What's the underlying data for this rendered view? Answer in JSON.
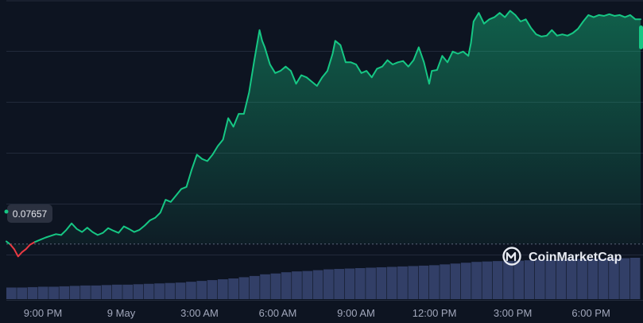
{
  "brand": {
    "name": "CoinMarketCap",
    "logo_icon": "coinmarketcap-logo-icon"
  },
  "colors": {
    "background": "#0d1421",
    "line": "#16c784",
    "line_below_reference": "#ea3943",
    "area_top": "#16c784",
    "grid": "#222a3b",
    "volume": "#3a4773",
    "reference_line": "#5d667b",
    "reference_label_bg": "#2b3140",
    "handle": "#16c784"
  },
  "chart_data": {
    "type": "line",
    "title": "",
    "xlabel": "",
    "ylabel": "",
    "x_unit": "hours",
    "xlim": [
      19.6,
      43.9
    ],
    "ylim": [
      0.07525,
      0.08225
    ],
    "reference_value": 0.07657,
    "reference_label": "0.07657",
    "grid": "horizontal",
    "xticks": [
      {
        "x": 21,
        "label": "9:00 PM"
      },
      {
        "x": 24,
        "label": "9 May"
      },
      {
        "x": 27,
        "label": "3:00 AM"
      },
      {
        "x": 30,
        "label": "6:00 AM"
      },
      {
        "x": 33,
        "label": "9:00 AM"
      },
      {
        "x": 36,
        "label": "12:00 PM"
      },
      {
        "x": 39,
        "label": "3:00 PM"
      },
      {
        "x": 42,
        "label": "6:00 PM"
      }
    ],
    "series": [
      {
        "role": "price",
        "points": [
          [
            19.6,
            0.07663
          ],
          [
            19.75,
            0.07656
          ],
          [
            19.9,
            0.07645
          ],
          [
            20.05,
            0.07628
          ],
          [
            20.2,
            0.07638
          ],
          [
            20.35,
            0.07645
          ],
          [
            20.5,
            0.07655
          ],
          [
            20.7,
            0.07662
          ],
          [
            20.9,
            0.07667
          ],
          [
            21.1,
            0.07672
          ],
          [
            21.3,
            0.07676
          ],
          [
            21.5,
            0.0768
          ],
          [
            21.7,
            0.07678
          ],
          [
            21.9,
            0.0769
          ],
          [
            22.1,
            0.07705
          ],
          [
            22.3,
            0.07692
          ],
          [
            22.5,
            0.07685
          ],
          [
            22.7,
            0.07695
          ],
          [
            22.9,
            0.07685
          ],
          [
            23.1,
            0.07678
          ],
          [
            23.3,
            0.07683
          ],
          [
            23.5,
            0.07694
          ],
          [
            23.7,
            0.07688
          ],
          [
            23.9,
            0.07683
          ],
          [
            24.1,
            0.07698
          ],
          [
            24.3,
            0.07692
          ],
          [
            24.5,
            0.07685
          ],
          [
            24.7,
            0.0769
          ],
          [
            24.9,
            0.077
          ],
          [
            25.1,
            0.07712
          ],
          [
            25.3,
            0.07718
          ],
          [
            25.5,
            0.0773
          ],
          [
            25.7,
            0.0776
          ],
          [
            25.9,
            0.07755
          ],
          [
            26.1,
            0.0777
          ],
          [
            26.3,
            0.07785
          ],
          [
            26.5,
            0.0779
          ],
          [
            26.7,
            0.0783
          ],
          [
            26.9,
            0.07865
          ],
          [
            27.1,
            0.07855
          ],
          [
            27.3,
            0.0785
          ],
          [
            27.5,
            0.07865
          ],
          [
            27.7,
            0.07885
          ],
          [
            27.9,
            0.079
          ],
          [
            28.1,
            0.0795
          ],
          [
            28.3,
            0.0793
          ],
          [
            28.5,
            0.0796
          ],
          [
            28.7,
            0.0796
          ],
          [
            28.9,
            0.0801
          ],
          [
            29.1,
            0.08085
          ],
          [
            29.3,
            0.08155
          ],
          [
            29.4,
            0.0813
          ],
          [
            29.5,
            0.08115
          ],
          [
            29.7,
            0.08075
          ],
          [
            29.9,
            0.08055
          ],
          [
            30.1,
            0.0806
          ],
          [
            30.3,
            0.0807
          ],
          [
            30.5,
            0.0806
          ],
          [
            30.7,
            0.0803
          ],
          [
            30.9,
            0.0805
          ],
          [
            31.1,
            0.08045
          ],
          [
            31.3,
            0.08035
          ],
          [
            31.5,
            0.08025
          ],
          [
            31.7,
            0.08045
          ],
          [
            31.9,
            0.0806
          ],
          [
            32.1,
            0.081
          ],
          [
            32.2,
            0.0813
          ],
          [
            32.4,
            0.0812
          ],
          [
            32.6,
            0.0808
          ],
          [
            32.8,
            0.0808
          ],
          [
            33.0,
            0.08075
          ],
          [
            33.2,
            0.08055
          ],
          [
            33.4,
            0.0806
          ],
          [
            33.6,
            0.08045
          ],
          [
            33.8,
            0.08065
          ],
          [
            34.0,
            0.0807
          ],
          [
            34.2,
            0.08085
          ],
          [
            34.4,
            0.08075
          ],
          [
            34.6,
            0.0808
          ],
          [
            34.8,
            0.08083
          ],
          [
            35.0,
            0.0807
          ],
          [
            35.2,
            0.08085
          ],
          [
            35.4,
            0.08115
          ],
          [
            35.6,
            0.0808
          ],
          [
            35.8,
            0.0803
          ],
          [
            35.9,
            0.0806
          ],
          [
            36.1,
            0.08062
          ],
          [
            36.3,
            0.08095
          ],
          [
            36.5,
            0.0808
          ],
          [
            36.7,
            0.08105
          ],
          [
            36.9,
            0.081
          ],
          [
            37.1,
            0.08105
          ],
          [
            37.3,
            0.08095
          ],
          [
            37.4,
            0.08125
          ],
          [
            37.5,
            0.08175
          ],
          [
            37.7,
            0.08195
          ],
          [
            37.9,
            0.0817
          ],
          [
            38.1,
            0.0818
          ],
          [
            38.3,
            0.08185
          ],
          [
            38.5,
            0.08195
          ],
          [
            38.7,
            0.08185
          ],
          [
            38.9,
            0.082
          ],
          [
            39.1,
            0.0819
          ],
          [
            39.3,
            0.08175
          ],
          [
            39.5,
            0.0818
          ],
          [
            39.7,
            0.0816
          ],
          [
            39.9,
            0.08145
          ],
          [
            40.1,
            0.0814
          ],
          [
            40.3,
            0.08142
          ],
          [
            40.5,
            0.08155
          ],
          [
            40.7,
            0.08142
          ],
          [
            40.9,
            0.08145
          ],
          [
            41.1,
            0.08142
          ],
          [
            41.3,
            0.08148
          ],
          [
            41.5,
            0.08158
          ],
          [
            41.7,
            0.08175
          ],
          [
            41.9,
            0.0819
          ],
          [
            42.1,
            0.08185
          ],
          [
            42.3,
            0.0819
          ],
          [
            42.5,
            0.08188
          ],
          [
            42.7,
            0.08192
          ],
          [
            42.9,
            0.08188
          ],
          [
            43.1,
            0.0819
          ],
          [
            43.3,
            0.08185
          ],
          [
            43.5,
            0.0819
          ],
          [
            43.7,
            0.0818
          ],
          [
            43.9,
            0.0818
          ]
        ]
      }
    ],
    "volume": [
      0.28,
      0.28,
      0.29,
      0.3,
      0.3,
      0.31,
      0.32,
      0.33,
      0.33,
      0.34,
      0.35,
      0.35,
      0.36,
      0.37,
      0.38,
      0.39,
      0.4,
      0.42,
      0.44,
      0.46,
      0.48,
      0.5,
      0.53,
      0.56,
      0.6,
      0.62,
      0.65,
      0.67,
      0.68,
      0.7,
      0.72,
      0.73,
      0.74,
      0.75,
      0.76,
      0.77,
      0.78,
      0.79,
      0.8,
      0.81,
      0.82,
      0.84,
      0.86,
      0.88,
      0.9,
      0.91,
      0.92,
      0.92,
      0.93,
      0.94,
      0.95,
      0.95,
      0.96,
      0.97,
      0.97,
      0.98,
      0.98,
      0.99,
      0.99,
      1.0
    ]
  }
}
